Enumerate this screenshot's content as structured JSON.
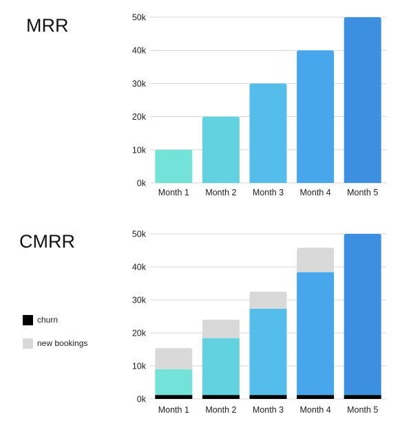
{
  "chart_data": [
    {
      "type": "bar",
      "title": "MRR",
      "categories": [
        "Month 1",
        "Month 2",
        "Month 3",
        "Month 4",
        "Month 5"
      ],
      "values": [
        10000,
        20000,
        30000,
        40000,
        50000
      ],
      "ylim": [
        0,
        50000
      ],
      "yticks": [
        "0k",
        "10k",
        "20k",
        "30k",
        "40k",
        "50k"
      ],
      "grid": true,
      "bar_colors": [
        "#72e3d6",
        "#62d2e0",
        "#55bdea",
        "#48a7ec",
        "#3d8fe0"
      ]
    },
    {
      "type": "bar",
      "stacked": true,
      "title": "CMRR",
      "categories": [
        "Month 1",
        "Month 2",
        "Month 3",
        "Month 4",
        "Month 5"
      ],
      "ylim": [
        0,
        50000
      ],
      "yticks": [
        "0k",
        "10k",
        "20k",
        "30k",
        "40k",
        "50k"
      ],
      "grid": true,
      "legend_position": "left",
      "series": [
        {
          "name": "churn",
          "values": [
            1200,
            1200,
            1200,
            1200,
            1200
          ],
          "color": "#000000"
        },
        {
          "values": [
            7800,
            17200,
            26100,
            37200,
            48800
          ],
          "colors": [
            "#72e3d6",
            "#62d2e0",
            "#55bdea",
            "#48a7ec",
            "#3d8fe0"
          ]
        },
        {
          "name": "new bookings",
          "values": [
            6400,
            5600,
            5200,
            7400,
            0
          ],
          "color": "#d9d9d9"
        }
      ]
    }
  ],
  "legend": [
    {
      "label": "churn",
      "color": "#000000"
    },
    {
      "label": "new bookings",
      "color": "#d9d9d9"
    }
  ]
}
